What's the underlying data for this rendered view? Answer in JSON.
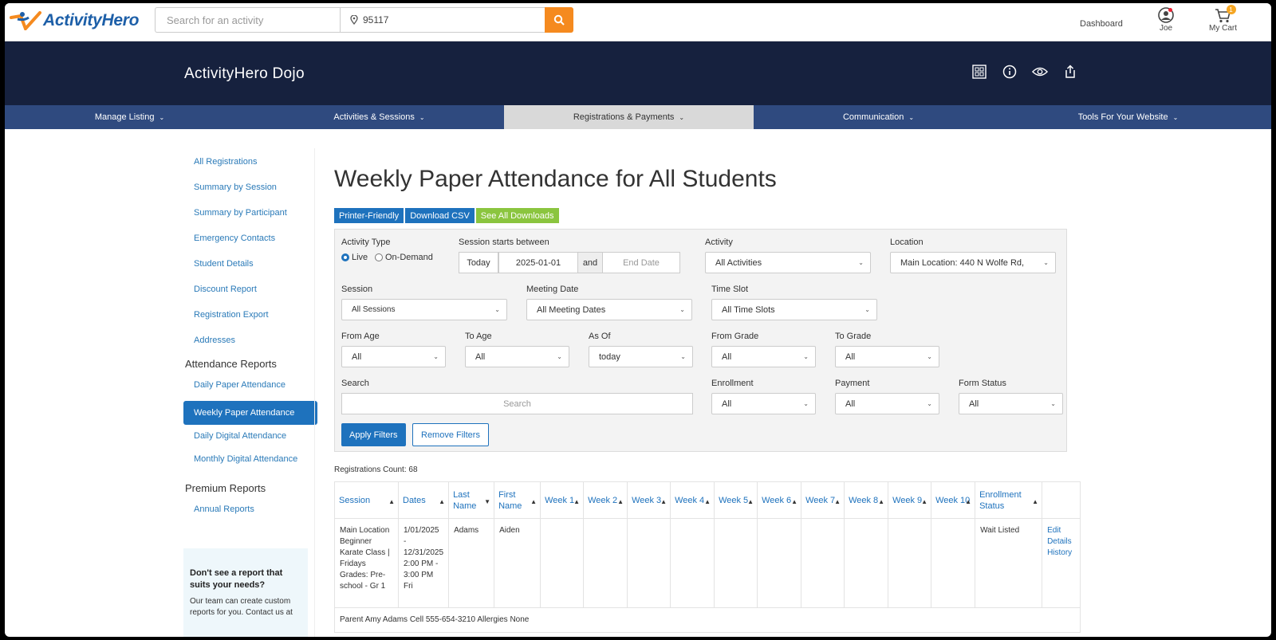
{
  "topbar": {
    "logo": "ActivityHero",
    "search_placeholder": "Search for an activity",
    "zip": "95117",
    "dashboard": "Dashboard",
    "user": "Joe",
    "cart": "My Cart",
    "cart_count": "1"
  },
  "banner": {
    "title": "ActivityHero Dojo"
  },
  "nav": [
    {
      "label": "Manage Listing"
    },
    {
      "label": "Activities & Sessions"
    },
    {
      "label": "Registrations & Payments"
    },
    {
      "label": "Communication"
    },
    {
      "label": "Tools For Your Website"
    }
  ],
  "sidebar": {
    "links": [
      "All Registrations",
      "Summary by Session",
      "Summary by Participant",
      "Emergency Contacts",
      "Student Details",
      "Discount Report",
      "Registration Export",
      "Addresses"
    ],
    "attendance_heading": "Attendance Reports",
    "attendance_links": [
      "Daily Paper Attendance",
      "Weekly Paper Attendance",
      "Daily Digital Attendance",
      "Monthly Digital Attendance"
    ],
    "premium_heading": "Premium Reports",
    "premium_links": [
      "Annual Reports"
    ],
    "help_heading": "Don't see a report that suits your needs?",
    "help_text": "Our team can create custom reports for you. Contact us at"
  },
  "main": {
    "title": "Weekly Paper Attendance for All Students",
    "buttons": {
      "printer": "Printer-Friendly",
      "csv": "Download CSV",
      "downloads": "See All Downloads"
    },
    "filters": {
      "activity_type_label": "Activity Type",
      "live": "Live",
      "on_demand": "On-Demand",
      "session_starts_label": "Session starts between",
      "today": "Today",
      "start_date": "2025-01-01",
      "and": "and",
      "end_date_placeholder": "End Date",
      "activity_label": "Activity",
      "activity_value": "All Activities",
      "location_label": "Location",
      "location_value": "Main Location: 440 N Wolfe Rd,",
      "session_label": "Session",
      "session_value": "All Sessions",
      "meeting_date_label": "Meeting Date",
      "meeting_date_value": "All Meeting Dates",
      "time_slot_label": "Time Slot",
      "time_slot_value": "All Time Slots",
      "from_age_label": "From Age",
      "from_age_value": "All",
      "to_age_label": "To Age",
      "to_age_value": "All",
      "as_of_label": "As Of",
      "as_of_value": "today",
      "from_grade_label": "From Grade",
      "from_grade_value": "All",
      "to_grade_label": "To Grade",
      "to_grade_value": "All",
      "search_label": "Search",
      "search_placeholder": "Search",
      "enrollment_label": "Enrollment",
      "enrollment_value": "All",
      "payment_label": "Payment",
      "payment_value": "All",
      "form_status_label": "Form Status",
      "form_status_value": "All",
      "apply": "Apply Filters",
      "remove": "Remove Filters"
    },
    "registrations_count": "Registrations Count: 68",
    "table": {
      "headers": {
        "session": "Session",
        "dates": "Dates",
        "last": "Last Name",
        "first": "First Name",
        "w1": "Week 1",
        "w2": "Week 2",
        "w3": "Week 3",
        "w4": "Week 4",
        "w5": "Week 5",
        "w6": "Week 6",
        "w7": "Week 7",
        "w8": "Week 8",
        "w9": "Week 9",
        "w10": "Week 10",
        "status": "Enrollment Status"
      },
      "row": {
        "session": "Main Location Beginner Karate Class | Fridays Grades: Pre-school - Gr 1",
        "dates": "1/01/2025 - 12/31/2025 2:00 PM - 3:00 PM Fri",
        "last": "Adams",
        "first": "Aiden",
        "status": "Wait Listed",
        "edit": "Edit",
        "details": "Details",
        "history": "History"
      },
      "parent_row": "Parent Amy Adams   Cell 555-654-3210   Allergies None"
    }
  }
}
